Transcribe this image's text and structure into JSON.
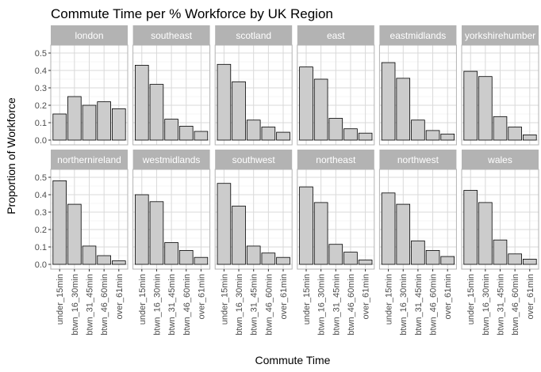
{
  "chart_data": {
    "type": "bar",
    "title": "Commute Time per % Workforce by UK Region",
    "xlabel": "Commute Time",
    "ylabel": "Proportion of Workforce",
    "categories": [
      "under_15min",
      "btwn_16_30min",
      "btwn_31_45min",
      "btwn_46_60min",
      "over_61min"
    ],
    "yticks": [
      "0.0",
      "0.1",
      "0.2",
      "0.3",
      "0.4",
      "0.5"
    ],
    "ylim": [
      0,
      0.53
    ],
    "grid": true,
    "facet_layout": {
      "rows": 2,
      "cols": 6,
      "shared_y": true
    },
    "series": [
      {
        "name": "london",
        "values": [
          0.15,
          0.25,
          0.2,
          0.22,
          0.18
        ]
      },
      {
        "name": "southeast",
        "values": [
          0.43,
          0.32,
          0.12,
          0.08,
          0.05
        ]
      },
      {
        "name": "scotland",
        "values": [
          0.435,
          0.335,
          0.115,
          0.075,
          0.045
        ]
      },
      {
        "name": "east",
        "values": [
          0.42,
          0.35,
          0.125,
          0.065,
          0.04
        ]
      },
      {
        "name": "eastmidlands",
        "values": [
          0.445,
          0.355,
          0.115,
          0.055,
          0.035
        ]
      },
      {
        "name": "yorkshirehumber",
        "values": [
          0.395,
          0.365,
          0.135,
          0.075,
          0.03
        ]
      },
      {
        "name": "northernireland",
        "values": [
          0.48,
          0.345,
          0.105,
          0.05,
          0.02
        ]
      },
      {
        "name": "westmidlands",
        "values": [
          0.4,
          0.36,
          0.125,
          0.08,
          0.04
        ]
      },
      {
        "name": "southwest",
        "values": [
          0.465,
          0.335,
          0.105,
          0.065,
          0.04
        ]
      },
      {
        "name": "northeast",
        "values": [
          0.445,
          0.355,
          0.115,
          0.07,
          0.025
        ]
      },
      {
        "name": "northwest",
        "values": [
          0.41,
          0.345,
          0.135,
          0.08,
          0.045
        ]
      },
      {
        "name": "wales",
        "values": [
          0.425,
          0.355,
          0.14,
          0.06,
          0.03
        ]
      }
    ]
  },
  "colors": {
    "bar_fill": "#cccccc",
    "bar_stroke": "#000000",
    "panel_border": "#b3b3b3",
    "grid_major": "#d9d9d9",
    "grid_minor": "#ebebeb",
    "strip_fill": "#b3b3b3",
    "strip_text": "#ffffff",
    "tick_text": "#4d4d4d"
  }
}
